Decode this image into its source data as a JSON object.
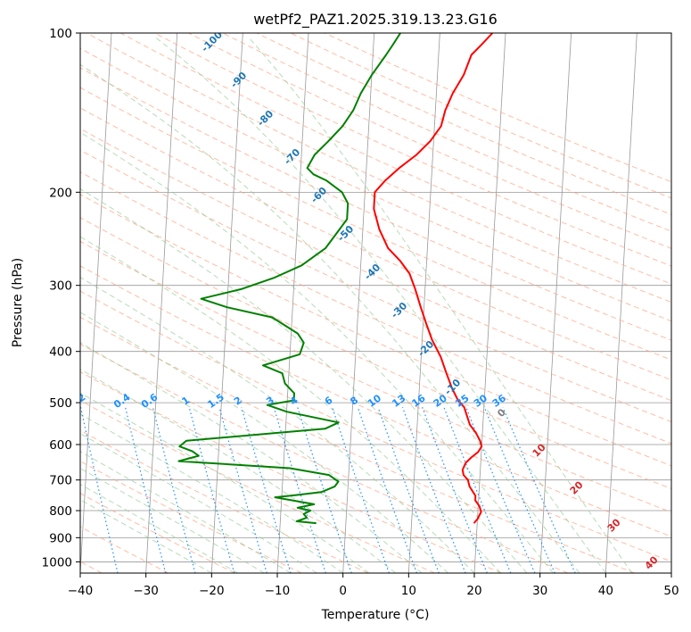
{
  "chart_data": {
    "type": "skew-t log-p",
    "title": "wetPf2_PAZ1.2025.319.13.23.G16",
    "xlabel": "Temperature (°C)",
    "ylabel": "Pressure (hPa)",
    "xlim": [
      -40,
      50
    ],
    "ylim": [
      1050,
      100
    ],
    "y_scale": "log",
    "x_ticks": [
      -40,
      -30,
      -20,
      -10,
      0,
      10,
      20,
      30,
      40,
      50
    ],
    "y_ticks": [
      100,
      200,
      300,
      400,
      500,
      600,
      700,
      800,
      900,
      1000
    ],
    "grid": true,
    "series": [
      {
        "color": "#ff0000",
        "role": "temperature",
        "points": [
          [
            19.5,
            845
          ],
          [
            20,
            830
          ],
          [
            20.5,
            805
          ],
          [
            20.2,
            785
          ],
          [
            19.5,
            765
          ],
          [
            19.5,
            750
          ],
          [
            19,
            735
          ],
          [
            18.5,
            720
          ],
          [
            18.2,
            700
          ],
          [
            17.5,
            685
          ],
          [
            17.3,
            670
          ],
          [
            17.7,
            650
          ],
          [
            18.5,
            635
          ],
          [
            19.5,
            620
          ],
          [
            20,
            605
          ],
          [
            19.7,
            590
          ],
          [
            19,
            570
          ],
          [
            18,
            550
          ],
          [
            17.5,
            530
          ],
          [
            17,
            510
          ],
          [
            16,
            495
          ],
          [
            15,
            470
          ],
          [
            14,
            440
          ],
          [
            13,
            410
          ],
          [
            11.5,
            380
          ],
          [
            10.5,
            355
          ],
          [
            9.5,
            330
          ],
          [
            8.5,
            305
          ],
          [
            7.5,
            285
          ],
          [
            6,
            270
          ],
          [
            4,
            255
          ],
          [
            2.5,
            235
          ],
          [
            1.5,
            215
          ],
          [
            1.5,
            200
          ],
          [
            3,
            190
          ],
          [
            5,
            180
          ],
          [
            7.5,
            170
          ],
          [
            9.5,
            160
          ],
          [
            11,
            150
          ],
          [
            11.5,
            140
          ],
          [
            12.5,
            130
          ],
          [
            14,
            120
          ],
          [
            15,
            110
          ],
          [
            16.5,
            105
          ],
          [
            18,
            100
          ]
        ]
      },
      {
        "color": "#008000",
        "role": "dewpoint",
        "points": [
          [
            -4.5,
            845
          ],
          [
            -7.5,
            838
          ],
          [
            -6,
            825
          ],
          [
            -6.5,
            812
          ],
          [
            -5.5,
            800
          ],
          [
            -7.5,
            790
          ],
          [
            -5,
            778
          ],
          [
            -11,
            755
          ],
          [
            -8,
            748
          ],
          [
            -4,
            738
          ],
          [
            -2,
            720
          ],
          [
            -1.5,
            705
          ],
          [
            -3,
            685
          ],
          [
            -9,
            665
          ],
          [
            -26,
            645
          ],
          [
            -23,
            630
          ],
          [
            -24,
            618
          ],
          [
            -26,
            605
          ],
          [
            -25,
            590
          ],
          [
            -4,
            560
          ],
          [
            -2,
            545
          ],
          [
            -10,
            520
          ],
          [
            -13,
            505
          ],
          [
            -9,
            495
          ],
          [
            -9,
            480
          ],
          [
            -10.5,
            460
          ],
          [
            -11,
            440
          ],
          [
            -14,
            425
          ],
          [
            -8.5,
            405
          ],
          [
            -8,
            385
          ],
          [
            -9,
            370
          ],
          [
            -13,
            345
          ],
          [
            -20,
            330
          ],
          [
            -24,
            318
          ],
          [
            -18,
            305
          ],
          [
            -13,
            290
          ],
          [
            -9,
            275
          ],
          [
            -5.5,
            255
          ],
          [
            -2.5,
            225
          ],
          [
            -2.5,
            210
          ],
          [
            -3.5,
            200
          ],
          [
            -6,
            190
          ],
          [
            -8,
            185
          ],
          [
            -9,
            180
          ],
          [
            -8,
            170
          ],
          [
            -6,
            160
          ],
          [
            -4,
            150
          ],
          [
            -2.5,
            140
          ],
          [
            -1.5,
            130
          ],
          [
            0,
            120
          ],
          [
            2,
            110
          ],
          [
            3,
            105
          ],
          [
            4,
            100
          ]
        ]
      }
    ],
    "adiabat_labels": [
      "-100",
      "-90",
      "-80",
      "-70",
      "-60",
      "-50",
      "-40",
      "-30",
      "-20",
      "-10",
      "0",
      "10",
      "20",
      "30",
      "40"
    ],
    "mixing_ratio_labels": [
      "0.1",
      "0.2",
      "0.4",
      "0.6",
      "1",
      "1.5",
      "2",
      "3",
      "4",
      "6",
      "8",
      "10",
      "13",
      "16",
      "20",
      "25",
      "30",
      "36"
    ],
    "colors": {
      "isotherm": "#999999",
      "isobar": "#999999",
      "dry_adiabat": "#ff9f7f",
      "moist_adiabat": "#8fc98f",
      "mixing_ratio": "#1e90ff",
      "adiabat_label_cold": "#1f77b4",
      "adiabat_label_zero": "#7f7f7f",
      "adiabat_label_warm": "#d62728",
      "mixing_label": "#1e90ff",
      "edge_curve": "#d2b48c"
    }
  }
}
